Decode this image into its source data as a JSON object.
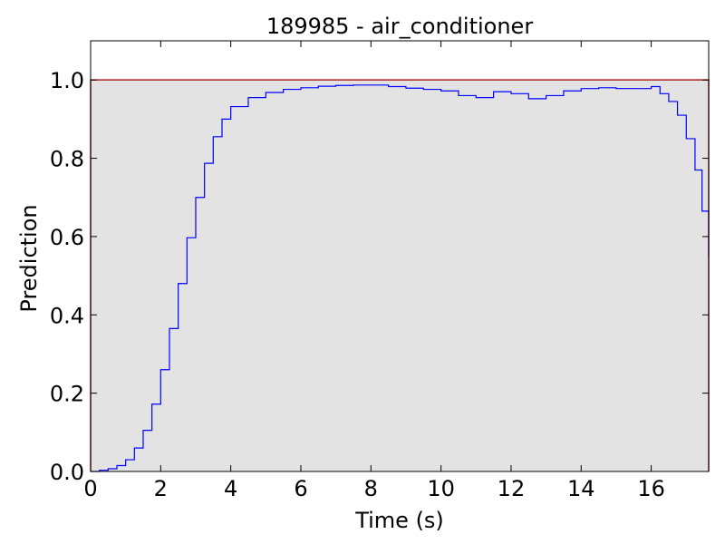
{
  "chart_data": {
    "type": "line",
    "title": "189985 - air_conditioner",
    "xlabel": "Time (s)",
    "ylabel": "Prediction",
    "xlim": [
      0,
      17.64
    ],
    "ylim": [
      0,
      1.1
    ],
    "xticks": [
      "0",
      "2",
      "4",
      "6",
      "8",
      "10",
      "12",
      "14",
      "16"
    ],
    "yticks": [
      "0.0",
      "0.2",
      "0.4",
      "0.6",
      "0.8",
      "1.0"
    ],
    "grid": false,
    "colors": {
      "prediction": "#0000ff",
      "ground_truth_fill": "#e3e3e3",
      "ground_truth_line": "#b22222"
    },
    "ground_truth": {
      "x_start": 0,
      "x_end": 17.64,
      "value": 1.0
    },
    "series": [
      {
        "style": "step-post",
        "x": [
          0,
          0.25,
          0.5,
          0.75,
          1.0,
          1.25,
          1.5,
          1.75,
          2.0,
          2.25,
          2.5,
          2.75,
          3.0,
          3.25,
          3.5,
          3.75,
          4.0,
          4.5,
          5.0,
          5.5,
          6.0,
          6.5,
          7.0,
          7.5,
          8.0,
          8.5,
          9.0,
          9.5,
          10.0,
          10.5,
          11.0,
          11.5,
          12.0,
          12.5,
          13.0,
          13.5,
          14.0,
          14.5,
          15.0,
          15.5,
          16.0,
          16.25,
          16.5,
          16.75,
          17.0,
          17.25,
          17.45,
          17.64
        ],
        "y": [
          0.0,
          0.003,
          0.007,
          0.015,
          0.03,
          0.06,
          0.105,
          0.172,
          0.26,
          0.365,
          0.48,
          0.597,
          0.7,
          0.787,
          0.855,
          0.9,
          0.932,
          0.955,
          0.968,
          0.976,
          0.98,
          0.984,
          0.986,
          0.987,
          0.987,
          0.983,
          0.979,
          0.976,
          0.972,
          0.96,
          0.955,
          0.97,
          0.965,
          0.952,
          0.96,
          0.972,
          0.978,
          0.98,
          0.978,
          0.978,
          0.983,
          0.965,
          0.945,
          0.91,
          0.85,
          0.77,
          0.665,
          0.548
        ],
        "note_skip": true
      }
    ]
  }
}
